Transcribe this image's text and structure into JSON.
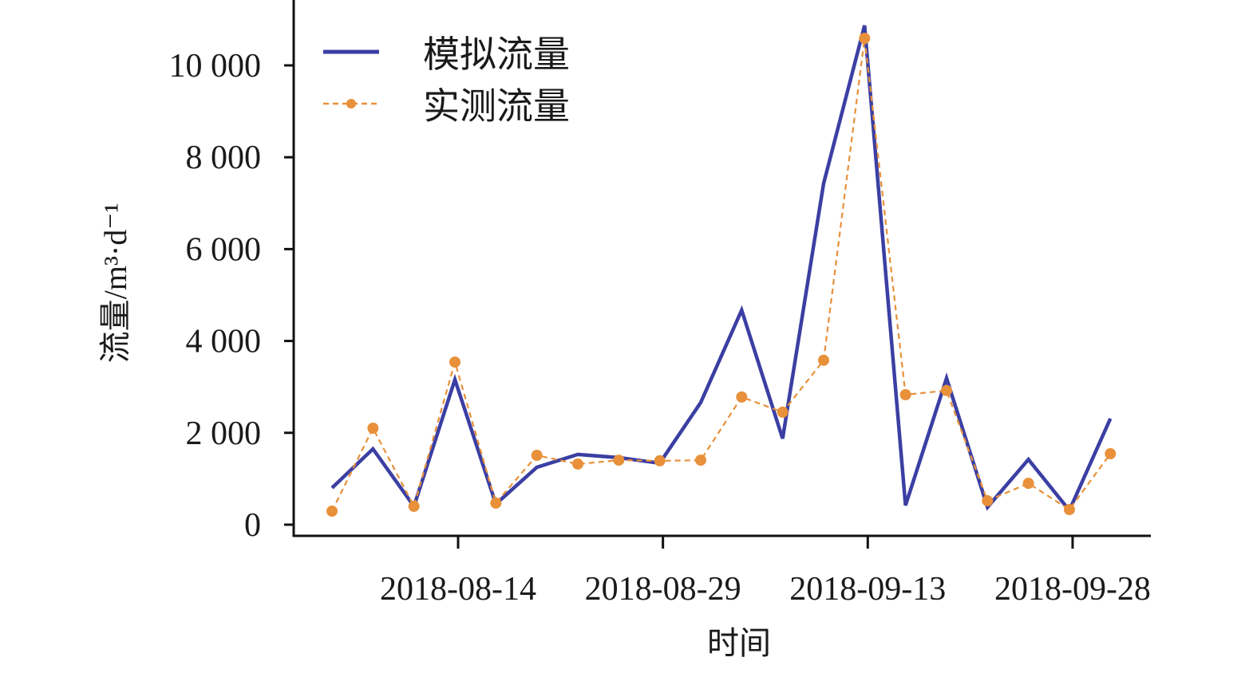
{
  "chart_data": {
    "type": "line",
    "title": "",
    "xlabel": "时间",
    "ylabel": "流量/m³·d⁻¹",
    "ylim": [
      0,
      11000
    ],
    "yticks": [
      0,
      2000,
      4000,
      6000,
      8000,
      10000
    ],
    "ytick_labels": [
      "0",
      "2 000",
      "4 000",
      "6 000",
      "8 000",
      "10 000"
    ],
    "xticks": [
      "2018-08-14",
      "2018-08-29",
      "2018-09-13",
      "2018-09-28"
    ],
    "legend_position": "top-left",
    "grid": false,
    "x": [
      "2018-08-05",
      "2018-08-08",
      "2018-08-11",
      "2018-08-14",
      "2018-08-17",
      "2018-08-20",
      "2018-08-23",
      "2018-08-26",
      "2018-08-29",
      "2018-09-01",
      "2018-09-04",
      "2018-09-07",
      "2018-09-10",
      "2018-09-13",
      "2018-09-16",
      "2018-09-19",
      "2018-09-22",
      "2018-09-25",
      "2018-09-28",
      "2018-10-01"
    ],
    "series": [
      {
        "name": "模拟流量",
        "color": "#3b3fa3",
        "style": "solid",
        "values": [
          800,
          1650,
          400,
          3160,
          450,
          1250,
          1530,
          1460,
          1340,
          2660,
          4670,
          1875,
          7430,
          10870,
          420,
          3190,
          380,
          1420,
          310,
          2310
        ]
      },
      {
        "name": "实测流量",
        "color": "#e8903a",
        "style": "dashed-marker",
        "values": [
          295,
          2100,
          400,
          3540,
          470,
          1510,
          1320,
          1405,
          1390,
          1405,
          2780,
          2450,
          3580,
          10590,
          2830,
          2920,
          520,
          900,
          330,
          1545
        ]
      }
    ]
  }
}
